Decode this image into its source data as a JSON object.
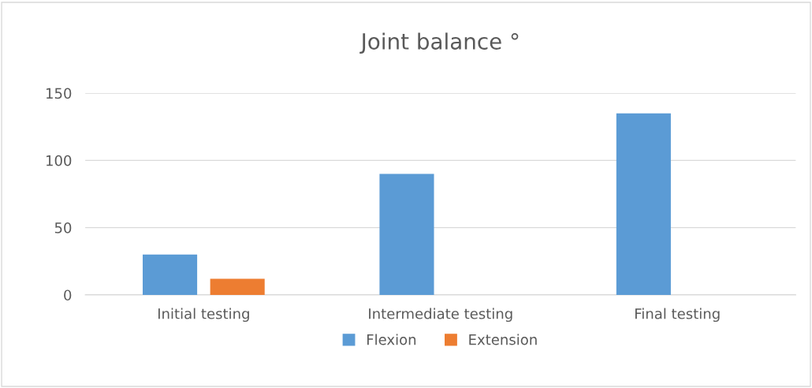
{
  "chart_data": {
    "type": "bar",
    "title": "Joint balance °",
    "categories": [
      "Initial testing",
      "Intermediate testing",
      "Final testing"
    ],
    "series": [
      {
        "name": "Flexion",
        "color": "#5b9bd5",
        "values": [
          30,
          90,
          135
        ]
      },
      {
        "name": "Extension",
        "color": "#ed7d31",
        "values": [
          12,
          0,
          0
        ]
      }
    ],
    "ylim": [
      0,
      150
    ],
    "yticks": [
      0,
      50,
      100,
      150
    ],
    "grid": "y",
    "legend": "bottom"
  }
}
